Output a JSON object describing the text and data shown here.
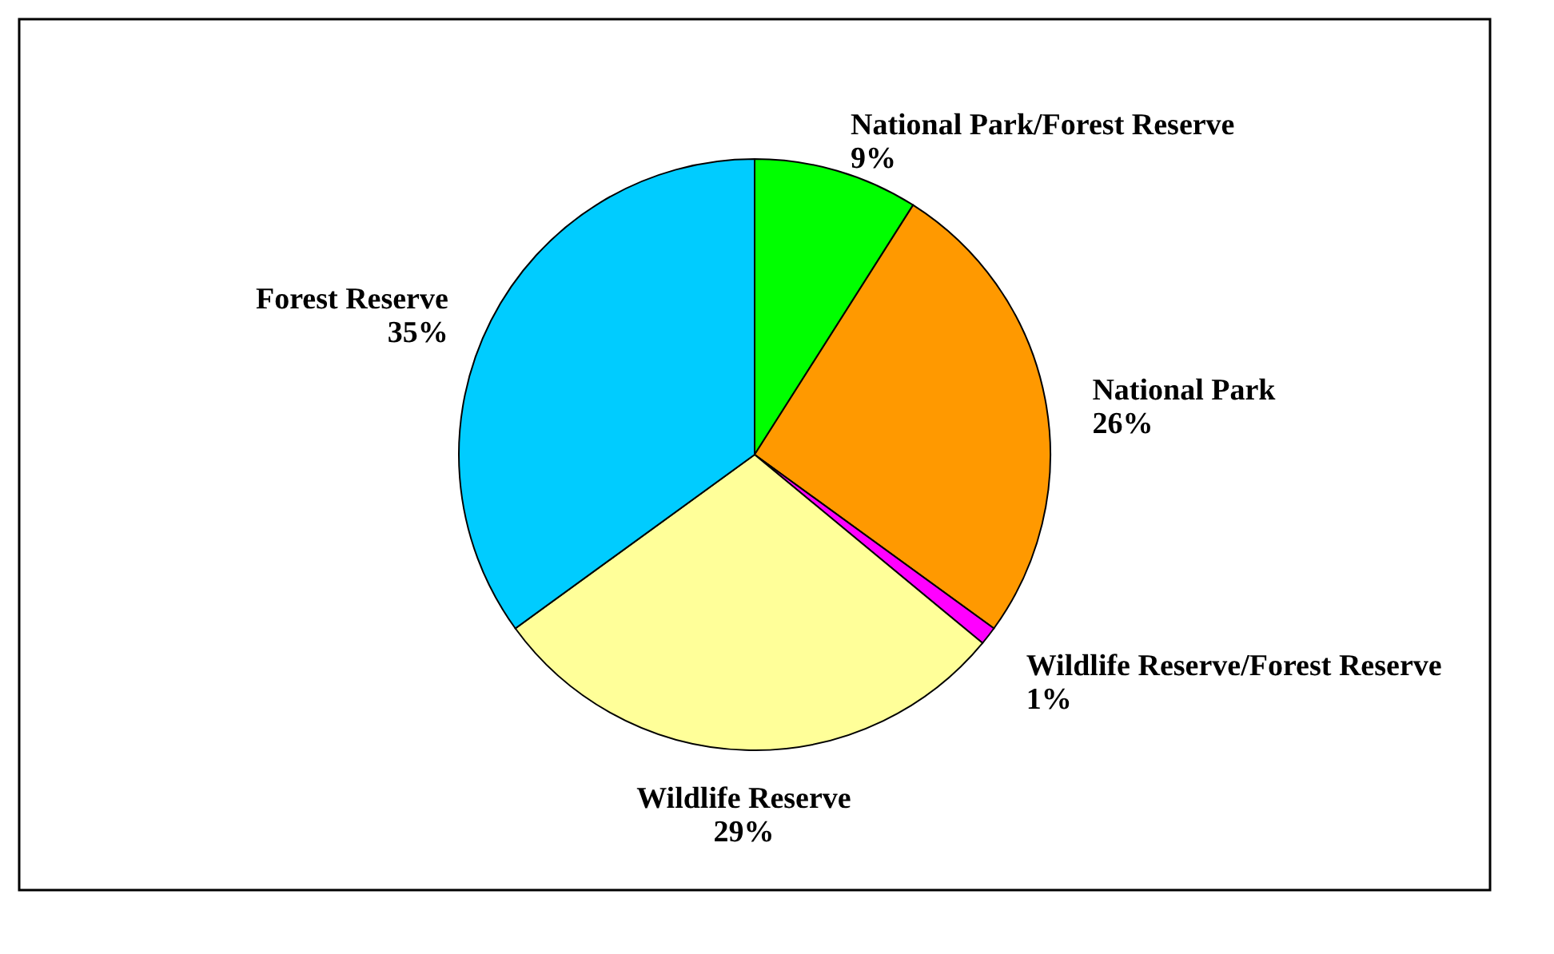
{
  "chart_data": {
    "type": "pie",
    "categories": [
      "National Park/Forest Reserve",
      "National Park",
      "Wildlife Reserve/Forest Reserve",
      "Wildlife Reserve",
      "Forest Reserve"
    ],
    "values": [
      9,
      26,
      1,
      29,
      35
    ],
    "value_labels": [
      "9%",
      "26%",
      "1%",
      "29%",
      "35%"
    ],
    "colors": [
      "#00ff00",
      "#ff9900",
      "#ff00ff",
      "#ffff99",
      "#00ccff"
    ],
    "legend": false
  }
}
